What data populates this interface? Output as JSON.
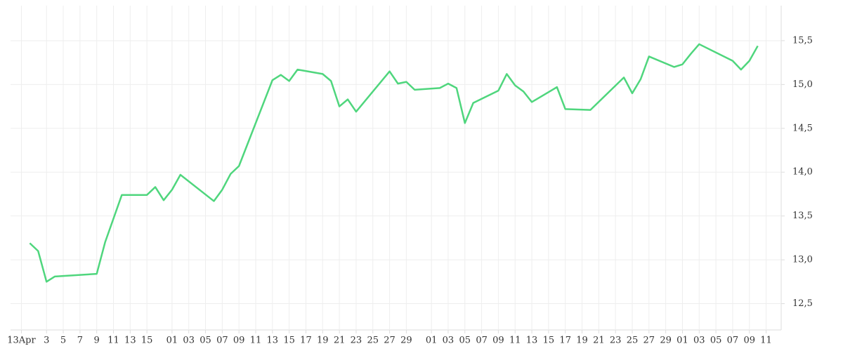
{
  "chart_data": {
    "type": "line",
    "x": [
      1,
      2,
      3,
      4,
      9,
      10,
      12,
      15,
      16,
      17,
      18,
      19,
      23,
      24,
      25,
      26,
      30,
      31,
      32,
      33,
      36,
      37,
      38,
      39,
      40,
      44,
      45,
      46,
      47,
      50,
      51,
      52,
      53,
      54,
      57,
      58,
      59,
      60,
      61,
      64,
      65,
      68,
      72,
      73,
      74,
      75,
      78,
      79,
      80,
      81,
      85,
      86,
      87,
      88
    ],
    "series": [
      {
        "color": "#4fd67d",
        "values": [
          13.19,
          13.1,
          12.75,
          12.81,
          12.84,
          13.2,
          13.74,
          13.74,
          13.83,
          13.68,
          13.8,
          13.97,
          13.67,
          13.8,
          13.98,
          14.07,
          15.05,
          15.11,
          15.04,
          15.17,
          15.12,
          15.04,
          14.75,
          14.83,
          14.69,
          15.15,
          15.01,
          15.03,
          14.94,
          14.96,
          15.01,
          14.96,
          14.56,
          14.79,
          14.93,
          15.12,
          14.99,
          14.92,
          14.8,
          14.97,
          14.72,
          14.71,
          15.08,
          14.9,
          15.06,
          15.32,
          15.2,
          15.23,
          15.35,
          15.46,
          15.27,
          15.17,
          15.27,
          15.44
        ]
      }
    ],
    "xlim": [
      -1.3,
      90.8
    ],
    "xticks": [
      {
        "value": 0,
        "label": "13Apr"
      },
      3,
      5,
      7,
      9,
      11,
      13,
      15,
      {
        "value": 18,
        "label": "01"
      },
      {
        "value": 20,
        "label": "03"
      },
      {
        "value": 22,
        "label": "05"
      },
      {
        "value": 24,
        "label": "07"
      },
      {
        "value": 26,
        "label": "09"
      },
      {
        "value": 28,
        "label": "11"
      },
      {
        "value": 30,
        "label": "13"
      },
      {
        "value": 32,
        "label": "15"
      },
      {
        "value": 34,
        "label": "17"
      },
      {
        "value": 36,
        "label": "19"
      },
      {
        "value": 38,
        "label": "21"
      },
      {
        "value": 40,
        "label": "23"
      },
      {
        "value": 42,
        "label": "25"
      },
      {
        "value": 44,
        "label": "27"
      },
      {
        "value": 46,
        "label": "29"
      },
      {
        "value": 49,
        "label": "01"
      },
      {
        "value": 51,
        "label": "03"
      },
      {
        "value": 53,
        "label": "05"
      },
      {
        "value": 55,
        "label": "07"
      },
      {
        "value": 57,
        "label": "09"
      },
      {
        "value": 59,
        "label": "11"
      },
      {
        "value": 61,
        "label": "13"
      },
      {
        "value": 63,
        "label": "15"
      },
      {
        "value": 65,
        "label": "17"
      },
      {
        "value": 67,
        "label": "19"
      },
      {
        "value": 69,
        "label": "21"
      },
      {
        "value": 71,
        "label": "23"
      },
      {
        "value": 73,
        "label": "25"
      },
      {
        "value": 75,
        "label": "27"
      },
      {
        "value": 77,
        "label": "29"
      },
      {
        "value": 79,
        "label": "01"
      },
      {
        "value": 81,
        "label": "03"
      },
      {
        "value": 83,
        "label": "05"
      },
      {
        "value": 85,
        "label": "07"
      },
      {
        "value": 87,
        "label": "09"
      },
      {
        "value": 89,
        "label": "11"
      }
    ],
    "ylim": [
      12.2,
      15.9
    ],
    "yticks": [
      {
        "value": 12.5,
        "label": "12,5"
      },
      {
        "value": 13,
        "label": "13,0"
      },
      {
        "value": 13.5,
        "label": "13,5"
      },
      {
        "value": 14,
        "label": "14,0"
      },
      {
        "value": 14.5,
        "label": "14,5"
      },
      {
        "value": 15,
        "label": "15,0"
      },
      {
        "value": 15.5,
        "label": "15,5"
      }
    ],
    "grid": true
  }
}
